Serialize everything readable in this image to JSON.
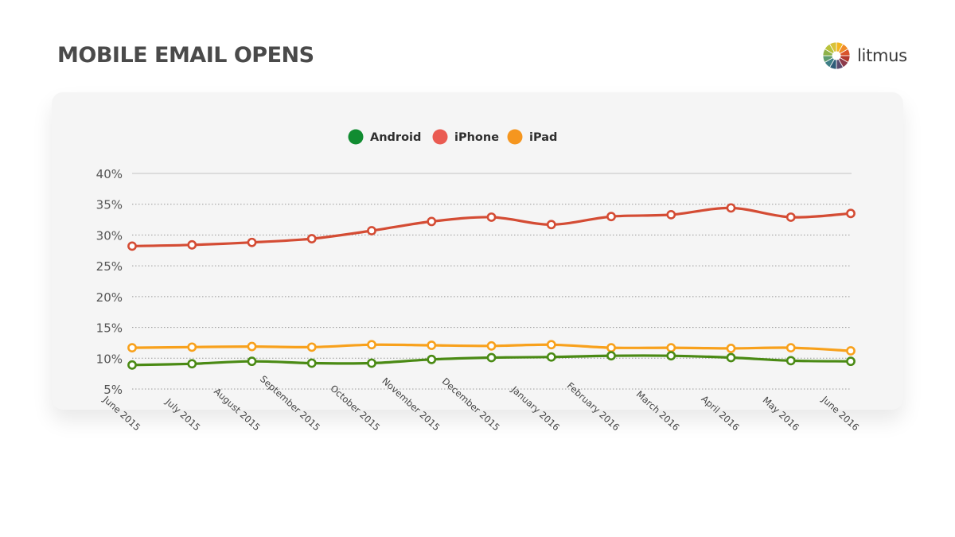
{
  "page": {
    "title": "MOBILE EMAIL OPENS"
  },
  "brand": {
    "name": "litmus",
    "logo_icon": "litmus-color-wheel-icon"
  },
  "colors": {
    "android": "#4a8a14",
    "iphone": "#d44c34",
    "ipad": "#f8a11c",
    "legend_android": "#118c31",
    "legend_iphone": "#ea5b52",
    "legend_ipad": "#f5961f"
  },
  "chart_data": {
    "type": "line",
    "title": "MOBILE EMAIL OPENS",
    "xlabel": "",
    "ylabel": "",
    "ylim": [
      5,
      40
    ],
    "yticks": [
      {
        "value": 5,
        "label": "5%"
      },
      {
        "value": 10,
        "label": "10%"
      },
      {
        "value": 15,
        "label": "15%"
      },
      {
        "value": 20,
        "label": "20%"
      },
      {
        "value": 25,
        "label": "25%"
      },
      {
        "value": 30,
        "label": "30%"
      },
      {
        "value": 35,
        "label": "35%"
      },
      {
        "value": 40,
        "label": "40%"
      }
    ],
    "grid": true,
    "legend_position": "top-center",
    "categories": [
      "June 2015",
      "July 2015",
      "August 2015",
      "September 2015",
      "October 2015",
      "November 2015",
      "December 2015",
      "January 2016",
      "February 2016",
      "March 2016",
      "April 2016",
      "May 2016",
      "June 2016"
    ],
    "series": [
      {
        "key": "android",
        "name": "Android",
        "values": [
          8.9,
          9.1,
          9.5,
          9.2,
          9.2,
          9.8,
          10.1,
          10.2,
          10.4,
          10.4,
          10.1,
          9.6,
          9.5
        ]
      },
      {
        "key": "iphone",
        "name": "iPhone",
        "values": [
          28.2,
          28.4,
          28.8,
          29.4,
          30.7,
          32.2,
          32.9,
          31.7,
          33.0,
          33.3,
          34.4,
          32.9,
          33.5
        ]
      },
      {
        "key": "ipad",
        "name": "iPad",
        "values": [
          11.7,
          11.8,
          11.9,
          11.8,
          12.2,
          12.1,
          12.0,
          12.2,
          11.7,
          11.7,
          11.6,
          11.7,
          11.2
        ]
      }
    ]
  }
}
